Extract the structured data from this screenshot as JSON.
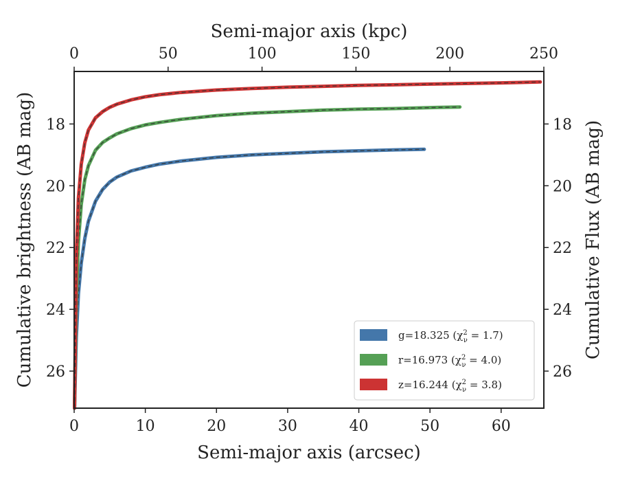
{
  "chart_data": {
    "type": "line",
    "xlabel_bottom": "Semi-major axis (arcsec)",
    "xlabel_top": "Semi-major axis (kpc)",
    "ylabel_left": "Cumulative brightness (AB mag)",
    "ylabel_right": "Cumulative Flux (AB mag)",
    "xlim_bottom": [
      0,
      66
    ],
    "xlim_top": [
      0,
      250
    ],
    "ylim": [
      16.3,
      27.2
    ],
    "y_inverted": true,
    "x_ticks_bottom": [
      "0",
      "10",
      "20",
      "30",
      "40",
      "50",
      "60"
    ],
    "x_ticks_top": [
      "0",
      "50",
      "100",
      "150",
      "200",
      "250"
    ],
    "y_ticks": [
      "18",
      "20",
      "22",
      "24",
      "26"
    ],
    "y_tick_values": [
      18,
      20,
      22,
      24,
      26
    ],
    "x_tick_values_bottom": [
      0,
      10,
      20,
      30,
      40,
      50,
      60
    ],
    "x_tick_values_top": [
      0,
      50,
      100,
      150,
      200,
      250
    ],
    "legend_position": "lower-right",
    "series": [
      {
        "name": "g=18.325 (χ²ν = 1.7)",
        "legend_label": "g=18.325 (χ",
        "legend_label_tail": "= 1.7)",
        "color": "#4477aa",
        "x": [
          0.05,
          0.3,
          0.6,
          1,
          1.5,
          2,
          3,
          4,
          5,
          6,
          8,
          10,
          12,
          15,
          20,
          25,
          30,
          35,
          40,
          45,
          49.2
        ],
        "y": [
          27.2,
          24.9,
          23.5,
          22.5,
          21.7,
          21.15,
          20.5,
          20.12,
          19.88,
          19.72,
          19.52,
          19.4,
          19.3,
          19.2,
          19.08,
          19.0,
          18.95,
          18.9,
          18.87,
          18.84,
          18.82
        ]
      },
      {
        "name": "r=16.973 (χ²ν = 4.0)",
        "legend_label": "r=16.973 (χ",
        "legend_label_tail": "= 4.0)",
        "color": "#55a055",
        "x": [
          0.05,
          0.3,
          0.6,
          1,
          1.5,
          2,
          3,
          4,
          5,
          6,
          8,
          10,
          12,
          15,
          20,
          25,
          30,
          35,
          40,
          45,
          50,
          54.2
        ],
        "y": [
          27.2,
          23.6,
          21.8,
          20.6,
          19.8,
          19.35,
          18.85,
          18.6,
          18.45,
          18.32,
          18.15,
          18.03,
          17.95,
          17.85,
          17.73,
          17.65,
          17.6,
          17.55,
          17.52,
          17.5,
          17.47,
          17.45
        ]
      },
      {
        "name": "z=16.244 (χ²ν = 3.8)",
        "legend_label": "z=16.244 (χ",
        "legend_label_tail": "= 3.8)",
        "color": "#cc3333",
        "x": [
          0.05,
          0.3,
          0.6,
          1,
          1.5,
          2,
          3,
          4,
          5,
          6,
          8,
          10,
          12,
          15,
          20,
          25,
          30,
          35,
          40,
          45,
          50,
          55,
          60,
          65.5
        ],
        "y": [
          27.2,
          22.3,
          20.4,
          19.3,
          18.6,
          18.2,
          17.8,
          17.6,
          17.46,
          17.36,
          17.22,
          17.12,
          17.05,
          16.98,
          16.9,
          16.85,
          16.81,
          16.78,
          16.75,
          16.73,
          16.71,
          16.69,
          16.67,
          16.64
        ]
      }
    ]
  }
}
